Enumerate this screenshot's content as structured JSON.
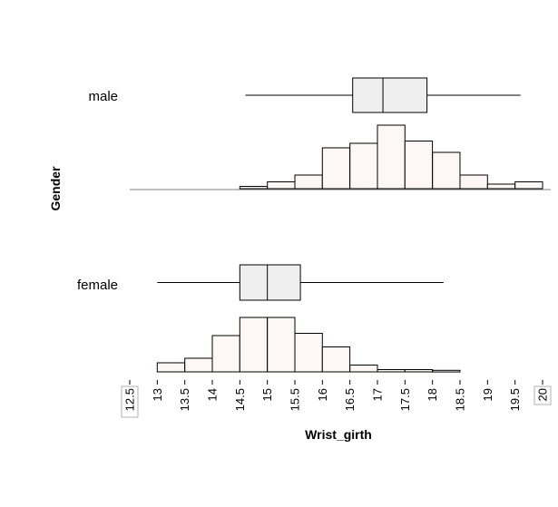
{
  "chart_data": {
    "type": "histogram-boxplot",
    "xlabel": "Wrist_girth",
    "ylabel": "Gender",
    "xlim": [
      12.5,
      20
    ],
    "xticks": [
      "12.5",
      "13",
      "13.5",
      "14",
      "14.5",
      "15",
      "15.5",
      "16",
      "16.5",
      "17",
      "17.5",
      "18",
      "18.5",
      "19",
      "19.5",
      "20"
    ],
    "boxed_ticks": [
      "12.5",
      "20"
    ],
    "bin_width": 0.5,
    "colors": {
      "bar_fill": "#fef7f7",
      "box_fill": "#efefef",
      "line": "#000000",
      "axis": "#808080"
    },
    "groups": [
      {
        "name": "male",
        "bins": [
          {
            "start": 14.5,
            "count": 1
          },
          {
            "start": 15.0,
            "count": 3
          },
          {
            "start": 15.5,
            "count": 6
          },
          {
            "start": 16.0,
            "count": 18
          },
          {
            "start": 16.5,
            "count": 20
          },
          {
            "start": 17.0,
            "count": 28
          },
          {
            "start": 17.5,
            "count": 21
          },
          {
            "start": 18.0,
            "count": 16
          },
          {
            "start": 18.5,
            "count": 6
          },
          {
            "start": 19.0,
            "count": 2
          },
          {
            "start": 19.5,
            "count": 3
          }
        ],
        "box": {
          "whisker_low": 14.6,
          "q1": 16.55,
          "median": 17.1,
          "q3": 17.9,
          "whisker_high": 19.6
        }
      },
      {
        "name": "female",
        "bins": [
          {
            "start": 13.0,
            "count": 4
          },
          {
            "start": 13.5,
            "count": 6
          },
          {
            "start": 14.0,
            "count": 16
          },
          {
            "start": 14.5,
            "count": 24
          },
          {
            "start": 15.0,
            "count": 24
          },
          {
            "start": 15.5,
            "count": 17
          },
          {
            "start": 16.0,
            "count": 11
          },
          {
            "start": 16.5,
            "count": 3
          },
          {
            "start": 17.0,
            "count": 1
          },
          {
            "start": 17.5,
            "count": 1
          },
          {
            "start": 18.0,
            "count": 0.7
          }
        ],
        "box": {
          "whisker_low": 13.0,
          "q1": 14.5,
          "median": 15.0,
          "q3": 15.6,
          "whisker_high": 18.2
        }
      }
    ]
  }
}
